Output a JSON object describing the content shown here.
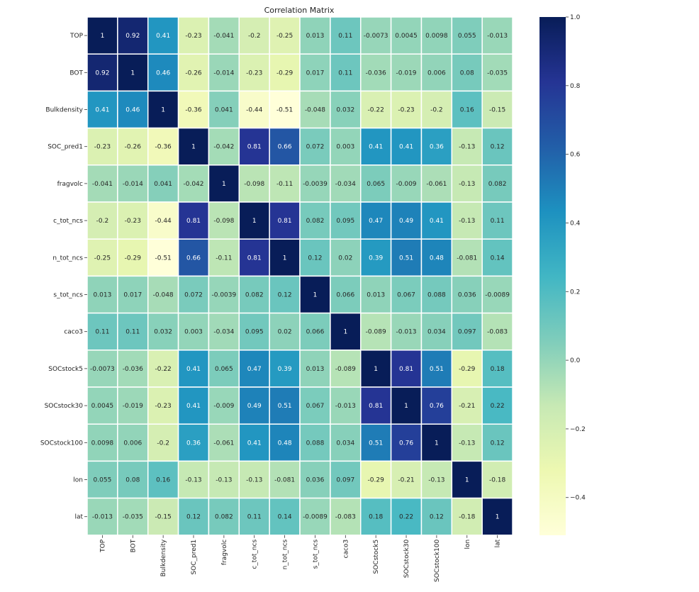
{
  "chart_data": {
    "type": "heatmap",
    "title": "Correlation Matrix",
    "labels": [
      "TOP",
      "BOT",
      "Bulkdensity",
      "SOC_pred1",
      "fragvolc",
      "c_tot_ncs",
      "n_tot_ncs",
      "s_tot_ncs",
      "caco3",
      "SOCstock5",
      "SOCstock30",
      "SOCstock100",
      "lon",
      "lat"
    ],
    "matrix": [
      [
        "1",
        "0.92",
        "0.41",
        "-0.23",
        "-0.041",
        "-0.2",
        "-0.25",
        "0.013",
        "0.11",
        "-0.0073",
        "0.0045",
        "0.0098",
        "0.055",
        "-0.013"
      ],
      [
        "0.92",
        "1",
        "0.46",
        "-0.26",
        "-0.014",
        "-0.23",
        "-0.29",
        "0.017",
        "0.11",
        "-0.036",
        "-0.019",
        "0.006",
        "0.08",
        "-0.035"
      ],
      [
        "0.41",
        "0.46",
        "1",
        "-0.36",
        "0.041",
        "-0.44",
        "-0.51",
        "-0.048",
        "0.032",
        "-0.22",
        "-0.23",
        "-0.2",
        "0.16",
        "-0.15"
      ],
      [
        "-0.23",
        "-0.26",
        "-0.36",
        "1",
        "-0.042",
        "0.81",
        "0.66",
        "0.072",
        "0.003",
        "0.41",
        "0.41",
        "0.36",
        "-0.13",
        "0.12"
      ],
      [
        "-0.041",
        "-0.014",
        "0.041",
        "-0.042",
        "1",
        "-0.098",
        "-0.11",
        "-0.0039",
        "-0.034",
        "0.065",
        "-0.009",
        "-0.061",
        "-0.13",
        "0.082"
      ],
      [
        "-0.2",
        "-0.23",
        "-0.44",
        "0.81",
        "-0.098",
        "1",
        "0.81",
        "0.082",
        "0.095",
        "0.47",
        "0.49",
        "0.41",
        "-0.13",
        "0.11"
      ],
      [
        "-0.25",
        "-0.29",
        "-0.51",
        "0.66",
        "-0.11",
        "0.81",
        "1",
        "0.12",
        "0.02",
        "0.39",
        "0.51",
        "0.48",
        "-0.081",
        "0.14"
      ],
      [
        "0.013",
        "0.017",
        "-0.048",
        "0.072",
        "-0.0039",
        "0.082",
        "0.12",
        "1",
        "0.066",
        "0.013",
        "0.067",
        "0.088",
        "0.036",
        "-0.0089"
      ],
      [
        "0.11",
        "0.11",
        "0.032",
        "0.003",
        "-0.034",
        "0.095",
        "0.02",
        "0.066",
        "1",
        "-0.089",
        "-0.013",
        "0.034",
        "0.097",
        "-0.083"
      ],
      [
        "-0.0073",
        "-0.036",
        "-0.22",
        "0.41",
        "0.065",
        "0.47",
        "0.39",
        "0.013",
        "-0.089",
        "1",
        "0.81",
        "0.51",
        "-0.29",
        "0.18"
      ],
      [
        "0.0045",
        "-0.019",
        "-0.23",
        "0.41",
        "-0.009",
        "0.49",
        "0.51",
        "0.067",
        "-0.013",
        "0.81",
        "1",
        "0.76",
        "-0.21",
        "0.22"
      ],
      [
        "0.0098",
        "0.006",
        "-0.2",
        "0.36",
        "-0.061",
        "0.41",
        "0.48",
        "0.088",
        "0.034",
        "0.51",
        "0.76",
        "1",
        "-0.13",
        "0.12"
      ],
      [
        "0.055",
        "0.08",
        "0.16",
        "-0.13",
        "-0.13",
        "-0.13",
        "-0.081",
        "0.036",
        "0.097",
        "-0.29",
        "-0.21",
        "-0.13",
        "1",
        "-0.18"
      ],
      [
        "-0.013",
        "-0.035",
        "-0.15",
        "0.12",
        "0.082",
        "0.11",
        "0.14",
        "-0.0089",
        "-0.083",
        "0.18",
        "0.22",
        "0.12",
        "-0.18",
        "1"
      ]
    ],
    "colormap": "YlGnBu",
    "colormap_stops": [
      "#ffffd9",
      "#edf8b1",
      "#c7e9b4",
      "#7fcdbb",
      "#41b6c4",
      "#1d91c0",
      "#225ea8",
      "#253494",
      "#081d58"
    ],
    "vmin": -0.51,
    "vmax": 1.0,
    "colorbar_ticks": [
      "1.0",
      "0.8",
      "0.6",
      "0.4",
      "0.2",
      "0.0",
      "−0.2",
      "−0.4"
    ],
    "colorbar_tick_values": [
      1.0,
      0.8,
      0.6,
      0.4,
      0.2,
      0.0,
      -0.2,
      -0.4
    ],
    "annotations": true,
    "gridlines": "white"
  }
}
